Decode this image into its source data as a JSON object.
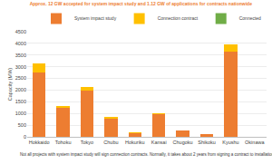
{
  "chart_data": {
    "type": "bar",
    "title": "Approx. 12 GW accepted for system impact study and 1.12 GW of applications for contracts nationwide",
    "y_label": "Capacity (MW)",
    "categories": [
      "Hokkaido",
      "Tohoku",
      "Tokyo",
      "Chubu",
      "Hokuriku",
      "Kansai",
      "Chugoku",
      "Shikoku",
      "Kyushu",
      "Okinawa"
    ],
    "series": [
      {
        "name": "System impact study",
        "color": "#ED7D31",
        "values": [
          2750,
          1230,
          1980,
          780,
          170,
          960,
          280,
          100,
          3650,
          10
        ]
      },
      {
        "name": "Connection contract",
        "color": "#FFC000",
        "values": [
          410,
          100,
          150,
          90,
          10,
          40,
          10,
          10,
          300,
          0
        ]
      },
      {
        "name": "Connected",
        "color": "#70AD47",
        "values": [
          0,
          0,
          0,
          0,
          0,
          0,
          0,
          0,
          0,
          0
        ]
      }
    ],
    "stacked": true,
    "ylim": [
      0,
      4500
    ],
    "yticks": [
      0,
      500,
      1000,
      1500,
      2000,
      2500,
      3000,
      3500,
      4000,
      4500
    ],
    "grid": true,
    "legend": "top right",
    "footnote": [
      "Not all projects with system impact study will sign connection contracts. Normally, it takes about 2 years from signing a contract to installation."
    ]
  }
}
